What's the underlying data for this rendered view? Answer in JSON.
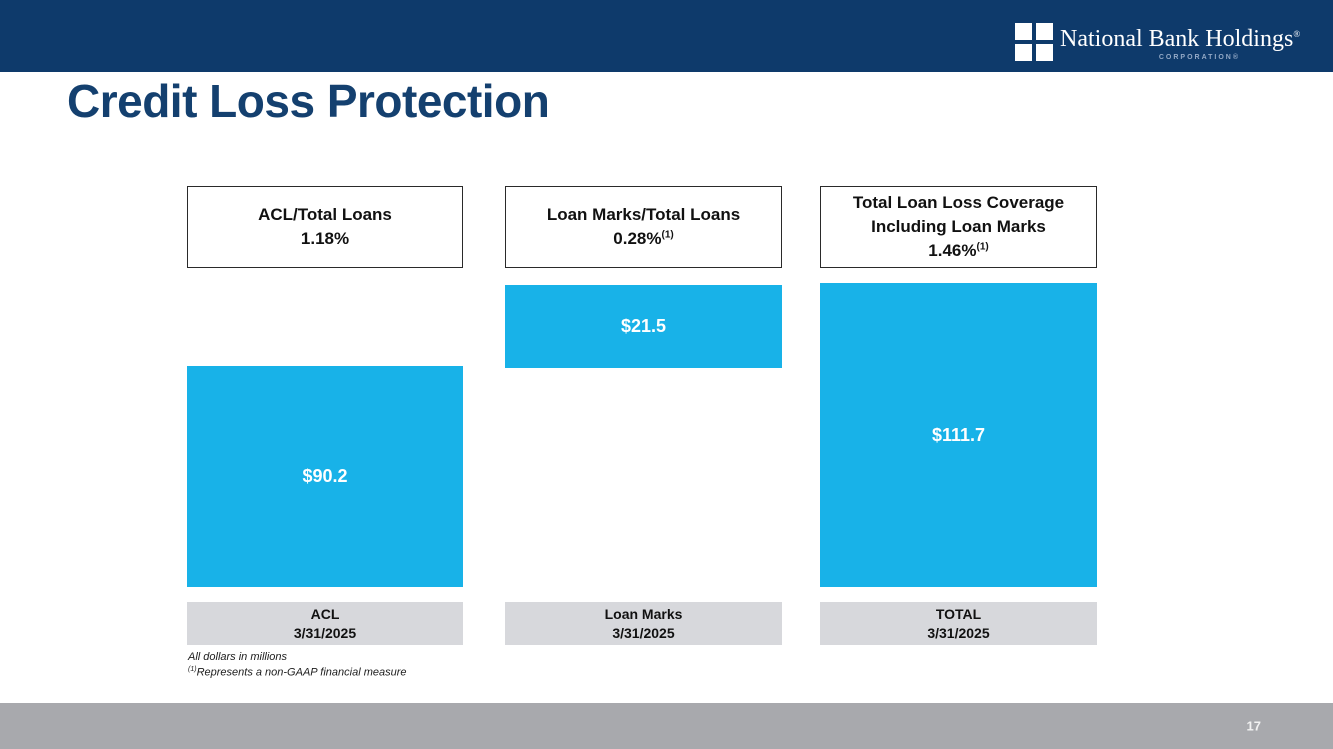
{
  "brand": {
    "name": "National Bank Holdings",
    "name_mark": "®",
    "subtitle": "CORPORATION®",
    "logo_icon": "window-grid-icon",
    "colors": {
      "navy": "#0e3a6b",
      "title_navy": "#14406f",
      "bar_cyan": "#18b2e8",
      "axis_gray": "#d7d8dc",
      "footer_gray": "#a8a9ad"
    }
  },
  "slide": {
    "title": "Credit Loss Protection",
    "page_number": "17"
  },
  "columns": [
    {
      "metric_label": "ACL/Total Loans",
      "metric_value": "1.18%",
      "metric_sup": "",
      "bar_value": "$90.2",
      "axis_label": "ACL",
      "axis_date": "3/31/2025"
    },
    {
      "metric_label": "Loan Marks/Total Loans",
      "metric_value": "0.28%",
      "metric_sup": "(1)",
      "bar_value": "$21.5",
      "axis_label": "Loan Marks",
      "axis_date": "3/31/2025"
    },
    {
      "metric_label": "Total Loan Loss Coverage Including Loan Marks",
      "metric_value": "1.46%",
      "metric_sup": "(1)",
      "bar_value": "$111.7",
      "axis_label": "TOTAL",
      "axis_date": "3/31/2025"
    }
  ],
  "footnotes": {
    "line1": "All dollars in millions",
    "marker": "(1)",
    "line2": "Represents a non-GAAP financial measure"
  },
  "chart_data": {
    "type": "bar",
    "title": "Credit Loss Protection",
    "categories": [
      "ACL 3/31/2025",
      "Loan Marks 3/31/2025",
      "TOTAL 3/31/2025"
    ],
    "values": [
      90.2,
      21.5,
      111.7
    ],
    "units": "USD millions",
    "bar_color": "#18b2e8",
    "data_labels": [
      "$90.2",
      "$21.5",
      "$111.7"
    ],
    "ratios": [
      {
        "label": "ACL/Total Loans",
        "value": "1.18%"
      },
      {
        "label": "Loan Marks/Total Loans",
        "value": "0.28%",
        "footnote": "(1) non-GAAP"
      },
      {
        "label": "Total Loan Loss Coverage Including Loan Marks",
        "value": "1.46%",
        "footnote": "(1) non-GAAP"
      }
    ],
    "layout": "three bars bottom-aligned on common baseline; Loan Marks bar floats stacked above top of ACL bar; TOTAL bar spans combined height; value labels centered inside bars; no axes or gridlines",
    "notes": [
      "All dollars in millions",
      "(1) Represents a non-GAAP financial measure"
    ]
  }
}
